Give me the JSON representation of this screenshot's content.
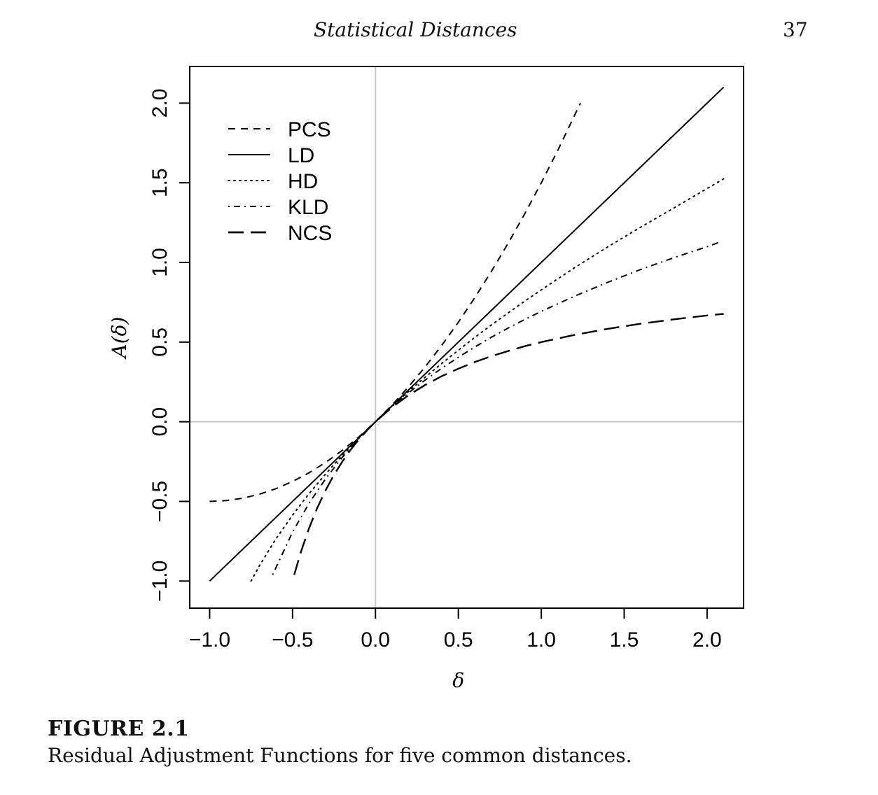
{
  "page": {
    "running_title": "Statistical Distances",
    "page_number": "37"
  },
  "figure": {
    "label": "FIGURE 2.1",
    "caption": "Residual Adjustment Functions for five common distances."
  },
  "chart_data": {
    "type": "line",
    "title": "",
    "xlabel": "δ",
    "ylabel": "A(δ)",
    "xlim": [
      -1.12,
      2.22
    ],
    "ylim": [
      -1.17,
      2.23
    ],
    "xticks": [
      -1.0,
      -0.5,
      0.0,
      0.5,
      1.0,
      1.5,
      2.0
    ],
    "xtick_labels": [
      "−1.0",
      "−0.5",
      "0.0",
      "0.5",
      "1.0",
      "1.5",
      "2.0"
    ],
    "yticks": [
      -1.0,
      -0.5,
      0.0,
      0.5,
      1.0,
      1.5,
      2.0
    ],
    "ytick_labels": [
      "−1.0",
      "−0.5",
      "0.0",
      "0.5",
      "1.0",
      "1.5",
      "2.0"
    ],
    "reference_lines": {
      "x": 0,
      "y": 0,
      "color": "#c8c8c8"
    },
    "grid": false,
    "legend_position": "top-left",
    "series": [
      {
        "name": "PCS",
        "dash": "dashed",
        "x": [
          -1.0,
          -0.9,
          -0.8,
          -0.7,
          -0.6,
          -0.5,
          -0.4,
          -0.3,
          -0.2,
          -0.1,
          0.0,
          0.1,
          0.2,
          0.3,
          0.4,
          0.5,
          0.6,
          0.7,
          0.8,
          0.9,
          1.0,
          1.1,
          1.236
        ],
        "y": [
          -0.5,
          -0.495,
          -0.48,
          -0.455,
          -0.42,
          -0.375,
          -0.32,
          -0.255,
          -0.18,
          -0.095,
          0.0,
          0.105,
          0.22,
          0.345,
          0.48,
          0.625,
          0.78,
          0.945,
          1.12,
          1.305,
          1.5,
          1.705,
          2.0
        ]
      },
      {
        "name": "LD",
        "dash": "solid",
        "x": [
          -1.0,
          2.1
        ],
        "y": [
          -1.0,
          2.1
        ]
      },
      {
        "name": "HD",
        "dash": "dotted",
        "x": [
          -0.75,
          -0.7,
          -0.6,
          -0.5,
          -0.4,
          -0.3,
          -0.2,
          -0.1,
          0.0,
          0.1,
          0.2,
          0.3,
          0.4,
          0.5,
          0.6,
          0.7,
          0.8,
          0.9,
          1.0,
          1.2,
          1.4,
          1.6,
          1.8,
          2.0,
          2.1
        ],
        "y": [
          -1.0,
          -0.904,
          -0.735,
          -0.586,
          -0.451,
          -0.327,
          -0.211,
          -0.103,
          0.0,
          0.098,
          0.191,
          0.28,
          0.366,
          0.449,
          0.53,
          0.608,
          0.683,
          0.757,
          0.828,
          0.966,
          1.097,
          1.222,
          1.342,
          1.464,
          1.525
        ]
      },
      {
        "name": "KLD",
        "dash": "dashdot",
        "x": [
          -0.62,
          -0.6,
          -0.5,
          -0.4,
          -0.3,
          -0.2,
          -0.1,
          0.0,
          0.1,
          0.2,
          0.3,
          0.4,
          0.5,
          0.6,
          0.7,
          0.8,
          0.9,
          1.0,
          1.2,
          1.4,
          1.6,
          1.8,
          2.0,
          2.07
        ],
        "y": [
          -0.96,
          -0.916,
          -0.693,
          -0.511,
          -0.357,
          -0.223,
          -0.105,
          0.0,
          0.095,
          0.182,
          0.262,
          0.336,
          0.405,
          0.47,
          0.531,
          0.588,
          0.642,
          0.693,
          0.788,
          0.875,
          0.956,
          1.03,
          1.099,
          1.125
        ]
      },
      {
        "name": "NCS",
        "dash": "longdash",
        "x": [
          -0.49,
          -0.45,
          -0.4,
          -0.35,
          -0.3,
          -0.25,
          -0.2,
          -0.15,
          -0.1,
          -0.05,
          0.0,
          0.1,
          0.2,
          0.3,
          0.4,
          0.5,
          0.6,
          0.7,
          0.8,
          0.9,
          1.0,
          1.2,
          1.4,
          1.6,
          1.8,
          2.0,
          2.1
        ],
        "y": [
          -0.961,
          -0.818,
          -0.667,
          -0.538,
          -0.429,
          -0.333,
          -0.25,
          -0.176,
          -0.111,
          -0.053,
          0.0,
          0.091,
          0.167,
          0.231,
          0.286,
          0.333,
          0.375,
          0.412,
          0.444,
          0.474,
          0.5,
          0.545,
          0.583,
          0.615,
          0.643,
          0.667,
          0.677
        ]
      }
    ]
  }
}
